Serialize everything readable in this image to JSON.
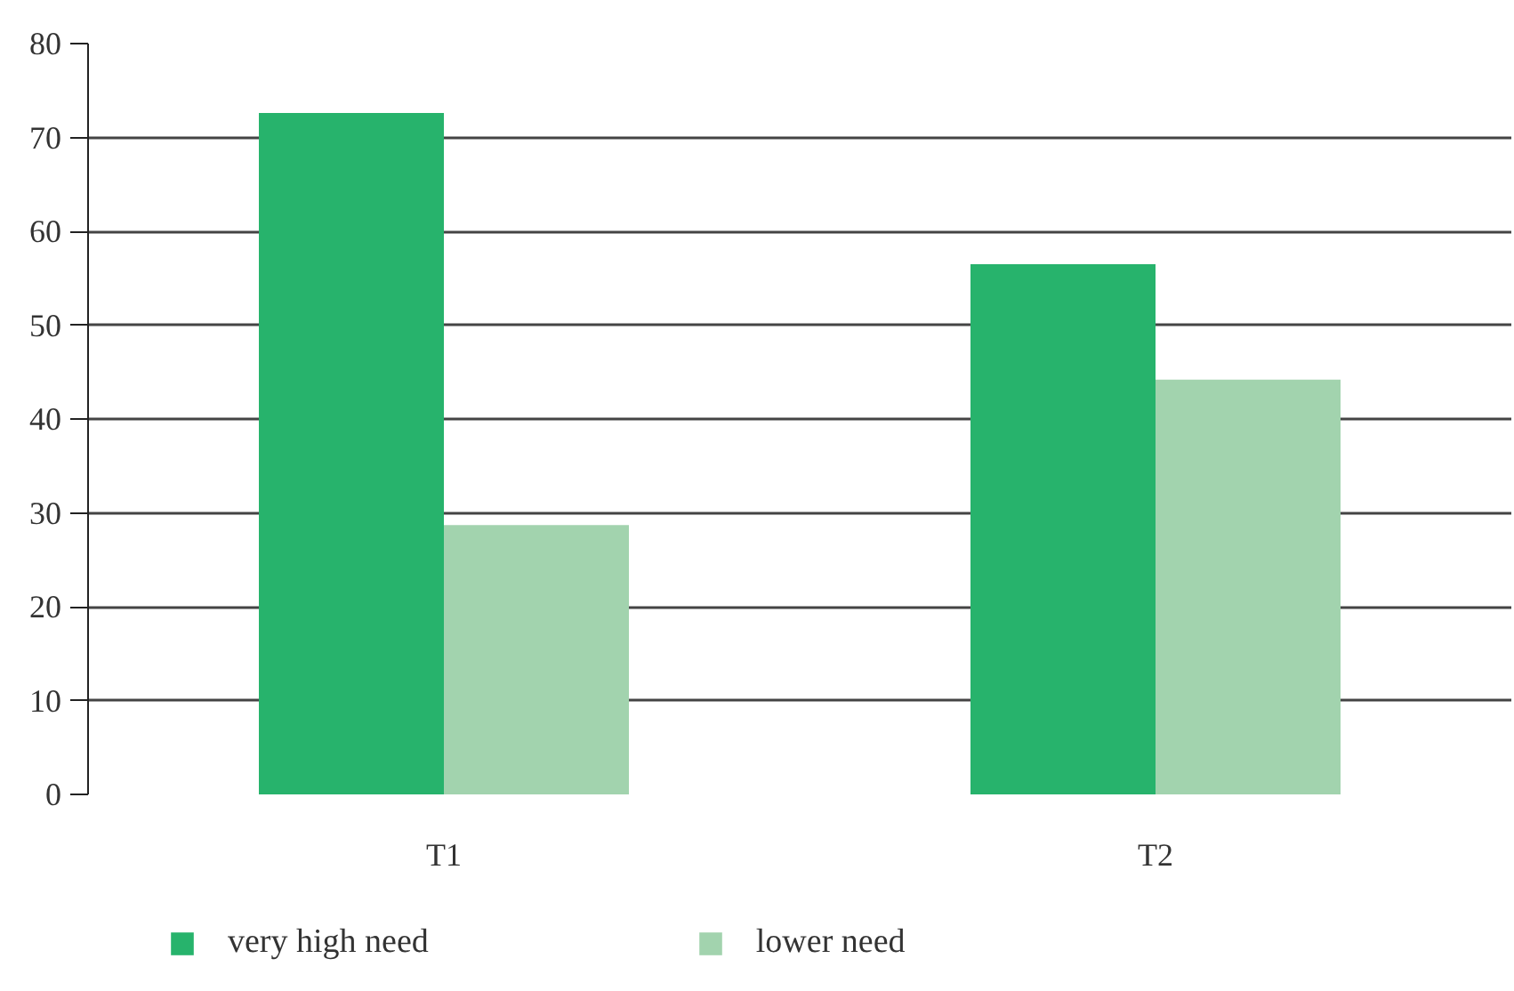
{
  "chart_data": {
    "type": "bar",
    "categories": [
      "T1",
      "T2"
    ],
    "series": [
      {
        "name": "very high need",
        "color": "#27b36c",
        "values": [
          72.6,
          56.5
        ]
      },
      {
        "name": "lower need",
        "color": "#a2d3ae",
        "values": [
          28.7,
          44.2
        ]
      }
    ],
    "ylim": [
      0,
      80
    ],
    "yticks": [
      0,
      10,
      20,
      30,
      40,
      50,
      60,
      70,
      80
    ],
    "grid": "y",
    "legend": "bottom"
  }
}
